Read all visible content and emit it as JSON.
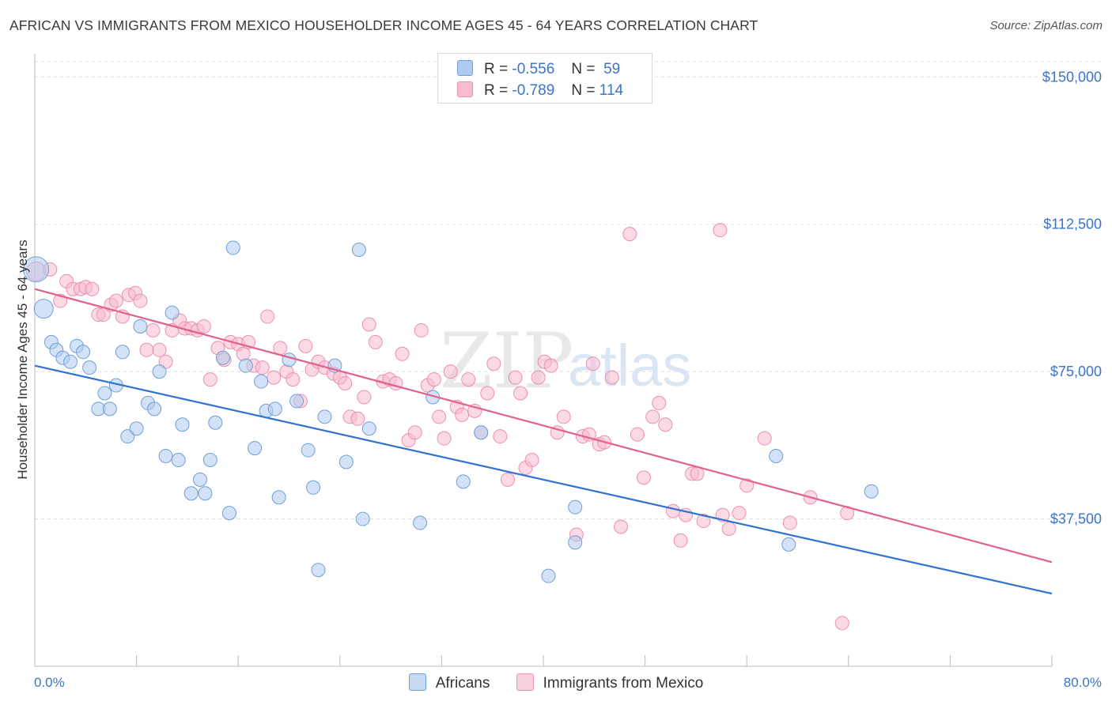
{
  "title": "AFRICAN VS IMMIGRANTS FROM MEXICO HOUSEHOLDER INCOME AGES 45 - 64 YEARS CORRELATION CHART",
  "source": "Source: ZipAtlas.com",
  "watermark": {
    "zip": "ZIP",
    "atlas": "atlas"
  },
  "legend": {
    "rows": [
      {
        "r_label": "R =",
        "r_value": "-0.556",
        "n_label": "N =",
        "n_value": "59"
      },
      {
        "r_label": "R =",
        "r_value": "-0.789",
        "n_label": "N =",
        "n_value": "114"
      }
    ]
  },
  "colors": {
    "africans_fill": "#aecbef",
    "africans_stroke": "#6f9fd8",
    "africans_line": "#2f72d0",
    "mexico_fill": "#f7bcd0",
    "mexico_stroke": "#ec8fb0",
    "mexico_line": "#e2608c",
    "tick_label": "#3b74c7",
    "grid": "#dddddd"
  },
  "chart_data": {
    "type": "scatter",
    "title": "AFRICAN VS IMMIGRANTS FROM MEXICO HOUSEHOLDER INCOME AGES 45 - 64 YEARS CORRELATION CHART",
    "xlabel": "",
    "ylabel": "Householder Income Ages 45 - 64 years",
    "xlim": [
      0,
      80
    ],
    "ylim": [
      0,
      157500
    ],
    "x_tick_labels": [
      "0.0%",
      "80.0%"
    ],
    "y_ticks": [
      37500,
      75000,
      112500,
      150000
    ],
    "y_tick_labels": [
      "$37,500",
      "$75,000",
      "$112,500",
      "$150,000"
    ],
    "grid": true,
    "legend_position": "bottom",
    "series": [
      {
        "name": "Africans",
        "trend": {
          "x": [
            0,
            80
          ],
          "y": [
            76500,
            18500
          ]
        },
        "points": [
          [
            0.1,
            101000,
            3
          ],
          [
            0.7,
            91000,
            2
          ],
          [
            1.3,
            82500,
            1
          ],
          [
            1.7,
            80500,
            1
          ],
          [
            2.2,
            78500,
            1
          ],
          [
            2.8,
            77500,
            1
          ],
          [
            3.3,
            81500,
            1
          ],
          [
            3.8,
            80000,
            1
          ],
          [
            4.3,
            76000,
            1
          ],
          [
            5.0,
            65500,
            1
          ],
          [
            5.5,
            69500,
            1
          ],
          [
            5.9,
            65500,
            1
          ],
          [
            6.4,
            71500,
            1
          ],
          [
            6.9,
            80000,
            1
          ],
          [
            7.3,
            58500,
            1
          ],
          [
            8.0,
            60500,
            1
          ],
          [
            8.3,
            86500,
            1
          ],
          [
            8.9,
            67000,
            1
          ],
          [
            9.4,
            65500,
            1
          ],
          [
            9.8,
            75000,
            1
          ],
          [
            10.3,
            53500,
            1
          ],
          [
            10.8,
            90000,
            1
          ],
          [
            11.3,
            52500,
            1
          ],
          [
            11.6,
            61500,
            1
          ],
          [
            12.3,
            44000,
            1
          ],
          [
            13.0,
            47500,
            1
          ],
          [
            13.4,
            44000,
            1
          ],
          [
            13.8,
            52500,
            1
          ],
          [
            14.2,
            62000,
            1
          ],
          [
            14.8,
            78500,
            1
          ],
          [
            15.3,
            39000,
            1
          ],
          [
            15.6,
            106500,
            1
          ],
          [
            16.6,
            76500,
            1
          ],
          [
            17.3,
            55500,
            1
          ],
          [
            17.8,
            72500,
            1
          ],
          [
            18.2,
            65000,
            1
          ],
          [
            18.9,
            65500,
            1
          ],
          [
            19.2,
            43000,
            1
          ],
          [
            20.0,
            78000,
            1
          ],
          [
            20.6,
            67500,
            1
          ],
          [
            21.5,
            55000,
            1
          ],
          [
            21.9,
            45500,
            1
          ],
          [
            22.3,
            24500,
            1
          ],
          [
            22.8,
            63500,
            1
          ],
          [
            23.6,
            76500,
            1
          ],
          [
            24.5,
            52000,
            1
          ],
          [
            25.5,
            106000,
            1
          ],
          [
            25.8,
            37500,
            1
          ],
          [
            26.3,
            60500,
            1
          ],
          [
            30.3,
            36500,
            1
          ],
          [
            31.3,
            68500,
            1
          ],
          [
            33.7,
            47000,
            1
          ],
          [
            35.1,
            59500,
            1
          ],
          [
            40.4,
            23000,
            1
          ],
          [
            42.5,
            40500,
            1
          ],
          [
            42.5,
            31500,
            1
          ],
          [
            58.3,
            53500,
            1
          ],
          [
            59.3,
            31000,
            1
          ],
          [
            65.8,
            44500,
            1
          ]
        ]
      },
      {
        "name": "Immigrants from Mexico",
        "trend": {
          "x": [
            0,
            80
          ],
          "y": [
            96000,
            26500
          ]
        },
        "points": [
          [
            0.1,
            100500,
            2
          ],
          [
            1.2,
            101000,
            1
          ],
          [
            2.0,
            93000,
            1
          ],
          [
            2.5,
            98000,
            1
          ],
          [
            3.0,
            96000,
            1
          ],
          [
            3.6,
            96000,
            1
          ],
          [
            4.0,
            96500,
            1
          ],
          [
            4.5,
            96000,
            1
          ],
          [
            5.0,
            89500,
            1
          ],
          [
            5.4,
            89500,
            1
          ],
          [
            6.0,
            92000,
            1
          ],
          [
            6.4,
            93000,
            1
          ],
          [
            6.9,
            89000,
            1
          ],
          [
            7.4,
            94500,
            1
          ],
          [
            7.9,
            95000,
            1
          ],
          [
            8.3,
            93000,
            1
          ],
          [
            8.8,
            80500,
            1
          ],
          [
            9.3,
            85500,
            1
          ],
          [
            9.8,
            80500,
            1
          ],
          [
            10.3,
            77500,
            1
          ],
          [
            10.8,
            85500,
            1
          ],
          [
            11.4,
            88000,
            1
          ],
          [
            11.8,
            86000,
            1
          ],
          [
            12.3,
            86000,
            1
          ],
          [
            12.8,
            85500,
            1
          ],
          [
            13.3,
            86500,
            1
          ],
          [
            13.8,
            73000,
            1
          ],
          [
            14.4,
            81000,
            1
          ],
          [
            14.9,
            78000,
            1
          ],
          [
            15.4,
            82500,
            1
          ],
          [
            16.0,
            82000,
            1
          ],
          [
            16.4,
            79500,
            1
          ],
          [
            16.8,
            82500,
            1
          ],
          [
            17.2,
            76500,
            1
          ],
          [
            17.9,
            76000,
            1
          ],
          [
            18.3,
            89000,
            1
          ],
          [
            18.8,
            73500,
            1
          ],
          [
            19.3,
            81000,
            1
          ],
          [
            19.8,
            75000,
            1
          ],
          [
            20.3,
            73000,
            1
          ],
          [
            20.9,
            67500,
            1
          ],
          [
            21.3,
            81500,
            1
          ],
          [
            21.8,
            75500,
            1
          ],
          [
            22.3,
            77500,
            1
          ],
          [
            22.8,
            76000,
            1
          ],
          [
            23.5,
            74500,
            1
          ],
          [
            24.0,
            73500,
            1
          ],
          [
            24.4,
            72000,
            1
          ],
          [
            24.8,
            63500,
            1
          ],
          [
            25.4,
            63000,
            1
          ],
          [
            25.9,
            68500,
            1
          ],
          [
            26.3,
            87000,
            1
          ],
          [
            26.8,
            82500,
            1
          ],
          [
            27.4,
            72500,
            1
          ],
          [
            27.9,
            73000,
            1
          ],
          [
            28.4,
            72000,
            1
          ],
          [
            28.9,
            79500,
            1
          ],
          [
            29.4,
            57500,
            1
          ],
          [
            29.9,
            59500,
            1
          ],
          [
            30.4,
            85500,
            1
          ],
          [
            30.9,
            71500,
            1
          ],
          [
            31.4,
            73000,
            1
          ],
          [
            31.8,
            63500,
            1
          ],
          [
            32.2,
            58000,
            1
          ],
          [
            32.7,
            75000,
            1
          ],
          [
            33.2,
            66000,
            1
          ],
          [
            33.6,
            64000,
            1
          ],
          [
            34.1,
            73000,
            1
          ],
          [
            34.6,
            65000,
            1
          ],
          [
            35.1,
            59500,
            1
          ],
          [
            35.6,
            69500,
            1
          ],
          [
            36.1,
            77000,
            1
          ],
          [
            36.6,
            58500,
            1
          ],
          [
            37.2,
            47500,
            1
          ],
          [
            37.8,
            73500,
            1
          ],
          [
            38.2,
            69500,
            1
          ],
          [
            38.6,
            50500,
            1
          ],
          [
            39.1,
            52500,
            1
          ],
          [
            39.6,
            73500,
            1
          ],
          [
            40.1,
            77500,
            1
          ],
          [
            40.6,
            76500,
            1
          ],
          [
            41.1,
            59500,
            1
          ],
          [
            41.6,
            63500,
            1
          ],
          [
            42.6,
            33500,
            1
          ],
          [
            43.1,
            58500,
            1
          ],
          [
            43.6,
            59000,
            1
          ],
          [
            43.9,
            77000,
            1
          ],
          [
            44.4,
            56500,
            1
          ],
          [
            44.8,
            57000,
            1
          ],
          [
            45.4,
            73500,
            1
          ],
          [
            46.1,
            35500,
            1
          ],
          [
            46.8,
            110000,
            1
          ],
          [
            47.4,
            59000,
            1
          ],
          [
            47.9,
            48000,
            1
          ],
          [
            48.6,
            63500,
            1
          ],
          [
            49.1,
            67000,
            1
          ],
          [
            49.6,
            61500,
            1
          ],
          [
            50.2,
            39500,
            1
          ],
          [
            50.8,
            32000,
            1
          ],
          [
            51.2,
            38500,
            1
          ],
          [
            51.7,
            49000,
            1
          ],
          [
            52.1,
            49000,
            1
          ],
          [
            52.6,
            37000,
            1
          ],
          [
            53.9,
            111000,
            1
          ],
          [
            54.1,
            38500,
            1
          ],
          [
            54.6,
            35000,
            1
          ],
          [
            55.4,
            39000,
            1
          ],
          [
            56.0,
            46000,
            1
          ],
          [
            57.4,
            58000,
            1
          ],
          [
            59.4,
            36500,
            1
          ],
          [
            61.0,
            43000,
            1
          ],
          [
            63.9,
            39000,
            1
          ],
          [
            63.5,
            11000,
            1
          ]
        ]
      }
    ]
  },
  "bottom_legend": {
    "africans": "Africans",
    "mexico": "Immigrants from Mexico"
  }
}
